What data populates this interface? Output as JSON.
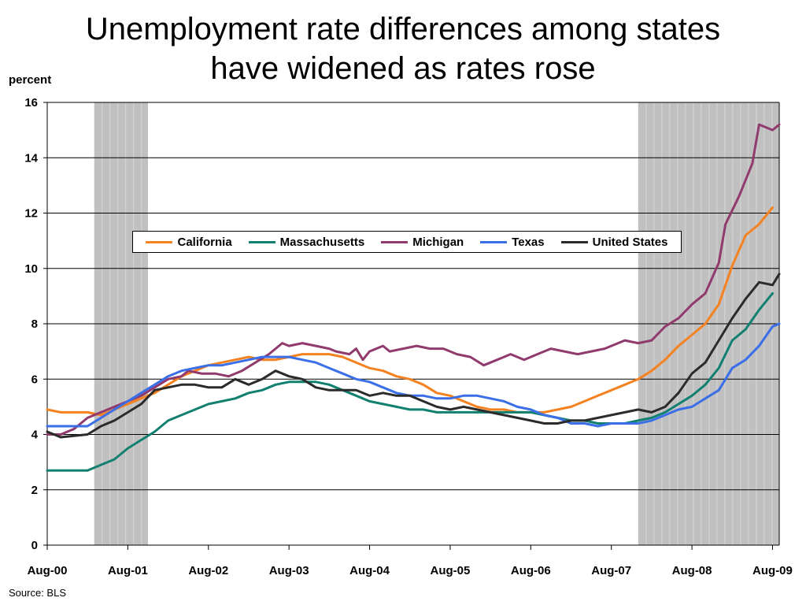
{
  "title_line1": "Unemployment rate differences among states",
  "title_line2": "have widened as rates rose",
  "source": "Source: BLS",
  "chart_data": {
    "type": "line",
    "title": "Unemployment rate differences among states have widened as rates rose",
    "ylabel": "percent",
    "xlabel": "",
    "ylim": [
      0,
      16
    ],
    "yticks": [
      "0",
      "2",
      "4",
      "6",
      "8",
      "10",
      "12",
      "14",
      "16"
    ],
    "x_tick_labels": [
      "Aug-00",
      "Aug-01",
      "Aug-02",
      "Aug-03",
      "Aug-04",
      "Aug-05",
      "Aug-06",
      "Aug-07",
      "Aug-08",
      "Aug-09"
    ],
    "x_start": "Aug-00",
    "x_end": "Sep-09",
    "grid": "horizontal",
    "legend_position": "upper center",
    "recession_shading": [
      {
        "start": "Mar-01",
        "end": "Nov-01"
      },
      {
        "start": "Dec-07",
        "end": "Sep-09"
      }
    ],
    "series": [
      {
        "name": "California",
        "color": "#F58220",
        "points": [
          [
            "Aug-00",
            4.9
          ],
          [
            "Oct-00",
            4.8
          ],
          [
            "Feb-01",
            4.8
          ],
          [
            "Apr-01",
            4.7
          ],
          [
            "Jun-01",
            4.9
          ],
          [
            "Aug-01",
            5.1
          ],
          [
            "Oct-01",
            5.3
          ],
          [
            "Dec-01",
            5.5
          ],
          [
            "Feb-02",
            5.8
          ],
          [
            "Apr-02",
            6.1
          ],
          [
            "Jun-02",
            6.3
          ],
          [
            "Aug-02",
            6.5
          ],
          [
            "Oct-02",
            6.6
          ],
          [
            "Dec-02",
            6.7
          ],
          [
            "Feb-03",
            6.8
          ],
          [
            "Apr-03",
            6.7
          ],
          [
            "Jun-03",
            6.7
          ],
          [
            "Aug-03",
            6.8
          ],
          [
            "Oct-03",
            6.9
          ],
          [
            "Dec-03",
            6.9
          ],
          [
            "Feb-04",
            6.9
          ],
          [
            "Apr-04",
            6.8
          ],
          [
            "Jun-04",
            6.6
          ],
          [
            "Aug-04",
            6.4
          ],
          [
            "Oct-04",
            6.3
          ],
          [
            "Dec-04",
            6.1
          ],
          [
            "Feb-05",
            6.0
          ],
          [
            "Apr-05",
            5.8
          ],
          [
            "Jun-05",
            5.5
          ],
          [
            "Aug-05",
            5.4
          ],
          [
            "Oct-05",
            5.2
          ],
          [
            "Dec-05",
            5.0
          ],
          [
            "Feb-06",
            4.9
          ],
          [
            "Apr-06",
            4.9
          ],
          [
            "Jun-06",
            4.8
          ],
          [
            "Aug-06",
            4.8
          ],
          [
            "Oct-06",
            4.8
          ],
          [
            "Dec-06",
            4.9
          ],
          [
            "Feb-07",
            5.0
          ],
          [
            "Apr-07",
            5.2
          ],
          [
            "Jun-07",
            5.4
          ],
          [
            "Aug-07",
            5.6
          ],
          [
            "Oct-07",
            5.8
          ],
          [
            "Dec-07",
            6.0
          ],
          [
            "Feb-08",
            6.3
          ],
          [
            "Apr-08",
            6.7
          ],
          [
            "Jun-08",
            7.2
          ],
          [
            "Aug-08",
            7.6
          ],
          [
            "Oct-08",
            8.0
          ],
          [
            "Dec-08",
            8.7
          ],
          [
            "Feb-09",
            10.1
          ],
          [
            "Apr-09",
            11.2
          ],
          [
            "Jun-09",
            11.6
          ],
          [
            "Aug-09",
            12.2
          ]
        ]
      },
      {
        "name": "Massachusetts",
        "color": "#128070",
        "points": [
          [
            "Aug-00",
            2.7
          ],
          [
            "Oct-00",
            2.7
          ],
          [
            "Feb-01",
            2.7
          ],
          [
            "Apr-01",
            2.9
          ],
          [
            "Jun-01",
            3.1
          ],
          [
            "Aug-01",
            3.5
          ],
          [
            "Oct-01",
            3.8
          ],
          [
            "Dec-01",
            4.1
          ],
          [
            "Feb-02",
            4.5
          ],
          [
            "Apr-02",
            4.7
          ],
          [
            "Jun-02",
            4.9
          ],
          [
            "Aug-02",
            5.1
          ],
          [
            "Oct-02",
            5.2
          ],
          [
            "Dec-02",
            5.3
          ],
          [
            "Feb-03",
            5.5
          ],
          [
            "Apr-03",
            5.6
          ],
          [
            "Jun-03",
            5.8
          ],
          [
            "Aug-03",
            5.9
          ],
          [
            "Oct-03",
            5.9
          ],
          [
            "Dec-03",
            5.9
          ],
          [
            "Feb-04",
            5.8
          ],
          [
            "Apr-04",
            5.6
          ],
          [
            "Jun-04",
            5.4
          ],
          [
            "Aug-04",
            5.2
          ],
          [
            "Oct-04",
            5.1
          ],
          [
            "Dec-04",
            5.0
          ],
          [
            "Feb-05",
            4.9
          ],
          [
            "Apr-05",
            4.9
          ],
          [
            "Jun-05",
            4.8
          ],
          [
            "Aug-05",
            4.8
          ],
          [
            "Oct-05",
            4.8
          ],
          [
            "Dec-05",
            4.8
          ],
          [
            "Feb-06",
            4.8
          ],
          [
            "Apr-06",
            4.8
          ],
          [
            "Jun-06",
            4.8
          ],
          [
            "Aug-06",
            4.8
          ],
          [
            "Oct-06",
            4.7
          ],
          [
            "Dec-06",
            4.6
          ],
          [
            "Feb-07",
            4.5
          ],
          [
            "Apr-07",
            4.5
          ],
          [
            "Jun-07",
            4.4
          ],
          [
            "Aug-07",
            4.4
          ],
          [
            "Oct-07",
            4.4
          ],
          [
            "Dec-07",
            4.5
          ],
          [
            "Feb-08",
            4.6
          ],
          [
            "Apr-08",
            4.8
          ],
          [
            "Jun-08",
            5.1
          ],
          [
            "Aug-08",
            5.4
          ],
          [
            "Oct-08",
            5.8
          ],
          [
            "Dec-08",
            6.4
          ],
          [
            "Feb-09",
            7.4
          ],
          [
            "Apr-09",
            7.8
          ],
          [
            "Jun-09",
            8.5
          ],
          [
            "Aug-09",
            9.1
          ]
        ]
      },
      {
        "name": "Michigan",
        "color": "#913A6E",
        "points": [
          [
            "Aug-00",
            4.0
          ],
          [
            "Oct-00",
            4.0
          ],
          [
            "Dec-00",
            4.2
          ],
          [
            "Feb-01",
            4.6
          ],
          [
            "Apr-01",
            4.8
          ],
          [
            "Jun-01",
            5.0
          ],
          [
            "Aug-01",
            5.2
          ],
          [
            "Oct-01",
            5.4
          ],
          [
            "Dec-01",
            5.7
          ],
          [
            "Feb-02",
            6.0
          ],
          [
            "Apr-02",
            6.1
          ],
          [
            "May-02",
            6.3
          ],
          [
            "Jul-02",
            6.2
          ],
          [
            "Sep-02",
            6.2
          ],
          [
            "Nov-02",
            6.1
          ],
          [
            "Jan-03",
            6.3
          ],
          [
            "Mar-03",
            6.6
          ],
          [
            "May-03",
            6.9
          ],
          [
            "Jul-03",
            7.3
          ],
          [
            "Aug-03",
            7.2
          ],
          [
            "Oct-03",
            7.3
          ],
          [
            "Dec-03",
            7.2
          ],
          [
            "Feb-04",
            7.1
          ],
          [
            "Mar-04",
            7.0
          ],
          [
            "May-04",
            6.9
          ],
          [
            "Jun-04",
            7.1
          ],
          [
            "Jul-04",
            6.7
          ],
          [
            "Aug-04",
            7.0
          ],
          [
            "Oct-04",
            7.2
          ],
          [
            "Nov-04",
            7.0
          ],
          [
            "Jan-05",
            7.1
          ],
          [
            "Mar-05",
            7.2
          ],
          [
            "May-05",
            7.1
          ],
          [
            "Jul-05",
            7.1
          ],
          [
            "Sep-05",
            6.9
          ],
          [
            "Nov-05",
            6.8
          ],
          [
            "Jan-06",
            6.5
          ],
          [
            "Mar-06",
            6.7
          ],
          [
            "May-06",
            6.9
          ],
          [
            "Jul-06",
            6.7
          ],
          [
            "Sep-06",
            6.9
          ],
          [
            "Nov-06",
            7.1
          ],
          [
            "Jan-07",
            7.0
          ],
          [
            "Mar-07",
            6.9
          ],
          [
            "May-07",
            7.0
          ],
          [
            "Jul-07",
            7.1
          ],
          [
            "Aug-07",
            7.2
          ],
          [
            "Oct-07",
            7.4
          ],
          [
            "Dec-07",
            7.3
          ],
          [
            "Feb-08",
            7.4
          ],
          [
            "Apr-08",
            7.9
          ],
          [
            "Jun-08",
            8.2
          ],
          [
            "Aug-08",
            8.7
          ],
          [
            "Oct-08",
            9.1
          ],
          [
            "Dec-08",
            10.2
          ],
          [
            "Jan-09",
            11.6
          ],
          [
            "Mar-09",
            12.6
          ],
          [
            "May-09",
            13.8
          ],
          [
            "Jun-09",
            15.2
          ],
          [
            "Aug-09",
            15.0
          ],
          [
            "Sep-09",
            15.2
          ]
        ]
      },
      {
        "name": "Texas",
        "color": "#3B6FE8",
        "points": [
          [
            "Aug-00",
            4.3
          ],
          [
            "Oct-00",
            4.3
          ],
          [
            "Feb-01",
            4.3
          ],
          [
            "Apr-01",
            4.6
          ],
          [
            "Jun-01",
            4.9
          ],
          [
            "Aug-01",
            5.2
          ],
          [
            "Oct-01",
            5.5
          ],
          [
            "Dec-01",
            5.8
          ],
          [
            "Feb-02",
            6.1
          ],
          [
            "Apr-02",
            6.3
          ],
          [
            "Jun-02",
            6.4
          ],
          [
            "Aug-02",
            6.5
          ],
          [
            "Oct-02",
            6.5
          ],
          [
            "Dec-02",
            6.6
          ],
          [
            "Feb-03",
            6.7
          ],
          [
            "Apr-03",
            6.8
          ],
          [
            "Jun-03",
            6.8
          ],
          [
            "Aug-03",
            6.8
          ],
          [
            "Oct-03",
            6.7
          ],
          [
            "Dec-03",
            6.6
          ],
          [
            "Feb-04",
            6.4
          ],
          [
            "Apr-04",
            6.2
          ],
          [
            "Jun-04",
            6.0
          ],
          [
            "Aug-04",
            5.9
          ],
          [
            "Oct-04",
            5.7
          ],
          [
            "Dec-04",
            5.5
          ],
          [
            "Feb-05",
            5.4
          ],
          [
            "Apr-05",
            5.4
          ],
          [
            "Jun-05",
            5.3
          ],
          [
            "Aug-05",
            5.3
          ],
          [
            "Oct-05",
            5.4
          ],
          [
            "Dec-05",
            5.4
          ],
          [
            "Feb-06",
            5.3
          ],
          [
            "Apr-06",
            5.2
          ],
          [
            "Jun-06",
            5.0
          ],
          [
            "Aug-06",
            4.9
          ],
          [
            "Oct-06",
            4.7
          ],
          [
            "Dec-06",
            4.6
          ],
          [
            "Feb-07",
            4.4
          ],
          [
            "Apr-07",
            4.4
          ],
          [
            "Jun-07",
            4.3
          ],
          [
            "Aug-07",
            4.4
          ],
          [
            "Oct-07",
            4.4
          ],
          [
            "Dec-07",
            4.4
          ],
          [
            "Feb-08",
            4.5
          ],
          [
            "Apr-08",
            4.7
          ],
          [
            "Jun-08",
            4.9
          ],
          [
            "Aug-08",
            5.0
          ],
          [
            "Oct-08",
            5.3
          ],
          [
            "Dec-08",
            5.6
          ],
          [
            "Feb-09",
            6.4
          ],
          [
            "Apr-09",
            6.7
          ],
          [
            "Jun-09",
            7.2
          ],
          [
            "Aug-09",
            7.9
          ],
          [
            "Sep-09",
            8.0
          ]
        ]
      },
      {
        "name": "United States",
        "color": "#2B2B2B",
        "points": [
          [
            "Aug-00",
            4.1
          ],
          [
            "Oct-00",
            3.9
          ],
          [
            "Feb-01",
            4.0
          ],
          [
            "Apr-01",
            4.3
          ],
          [
            "Jun-01",
            4.5
          ],
          [
            "Aug-01",
            4.8
          ],
          [
            "Oct-01",
            5.1
          ],
          [
            "Dec-01",
            5.6
          ],
          [
            "Feb-02",
            5.7
          ],
          [
            "Apr-02",
            5.8
          ],
          [
            "Jun-02",
            5.8
          ],
          [
            "Aug-02",
            5.7
          ],
          [
            "Oct-02",
            5.7
          ],
          [
            "Dec-02",
            6.0
          ],
          [
            "Feb-03",
            5.8
          ],
          [
            "Apr-03",
            6.0
          ],
          [
            "Jun-03",
            6.3
          ],
          [
            "Aug-03",
            6.1
          ],
          [
            "Oct-03",
            6.0
          ],
          [
            "Dec-03",
            5.7
          ],
          [
            "Feb-04",
            5.6
          ],
          [
            "Apr-04",
            5.6
          ],
          [
            "Jun-04",
            5.6
          ],
          [
            "Aug-04",
            5.4
          ],
          [
            "Oct-04",
            5.5
          ],
          [
            "Dec-04",
            5.4
          ],
          [
            "Feb-05",
            5.4
          ],
          [
            "Apr-05",
            5.2
          ],
          [
            "Jun-05",
            5.0
          ],
          [
            "Aug-05",
            4.9
          ],
          [
            "Oct-05",
            5.0
          ],
          [
            "Dec-05",
            4.9
          ],
          [
            "Feb-06",
            4.8
          ],
          [
            "Apr-06",
            4.7
          ],
          [
            "Jun-06",
            4.6
          ],
          [
            "Aug-06",
            4.5
          ],
          [
            "Oct-06",
            4.4
          ],
          [
            "Dec-06",
            4.4
          ],
          [
            "Feb-07",
            4.5
          ],
          [
            "Apr-07",
            4.5
          ],
          [
            "Jun-07",
            4.6
          ],
          [
            "Aug-07",
            4.7
          ],
          [
            "Oct-07",
            4.8
          ],
          [
            "Dec-07",
            4.9
          ],
          [
            "Feb-08",
            4.8
          ],
          [
            "Apr-08",
            5.0
          ],
          [
            "Jun-08",
            5.5
          ],
          [
            "Aug-08",
            6.2
          ],
          [
            "Oct-08",
            6.6
          ],
          [
            "Dec-08",
            7.4
          ],
          [
            "Feb-09",
            8.2
          ],
          [
            "Apr-09",
            8.9
          ],
          [
            "Jun-09",
            9.5
          ],
          [
            "Aug-09",
            9.4
          ],
          [
            "Sep-09",
            9.8
          ]
        ]
      }
    ]
  }
}
